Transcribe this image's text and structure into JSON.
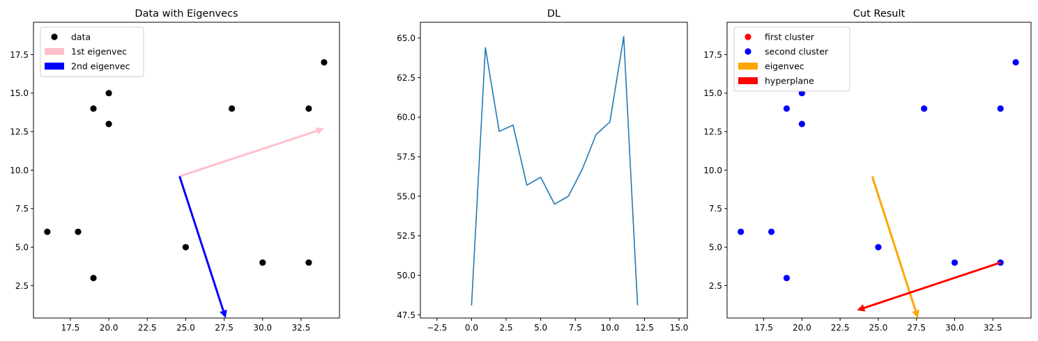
{
  "chart_data": [
    {
      "type": "scatter",
      "title": "Data with Eigenvecs",
      "xlim": [
        15.1,
        35.0
      ],
      "ylim": [
        0.4,
        19.6
      ],
      "xticks": [
        "17.5",
        "20.0",
        "22.5",
        "25.0",
        "27.5",
        "30.0",
        "32.5"
      ],
      "yticks": [
        "2.5",
        "5.0",
        "7.5",
        "10.0",
        "12.5",
        "15.0",
        "17.5"
      ],
      "series": [
        {
          "name": "data",
          "kind": "points",
          "color": "#000000",
          "points": [
            [
              16,
              6
            ],
            [
              18,
              6
            ],
            [
              19,
              3
            ],
            [
              19,
              14
            ],
            [
              20,
              15
            ],
            [
              20,
              13
            ],
            [
              25,
              5
            ],
            [
              28,
              14
            ],
            [
              30,
              4
            ],
            [
              33,
              4
            ],
            [
              33,
              14
            ],
            [
              34,
              17
            ]
          ]
        },
        {
          "name": "1st eigenvec",
          "kind": "arrow",
          "color": "#ffc0cb",
          "from": [
            24.6,
            9.6
          ],
          "to": [
            34.0,
            12.7
          ]
        },
        {
          "name": "2nd eigenvec",
          "kind": "arrow",
          "color": "#0000ff",
          "from": [
            24.6,
            9.6
          ],
          "to": [
            27.6,
            0.4
          ]
        }
      ],
      "legend": "top-left",
      "grid": false
    },
    {
      "type": "line",
      "title": "DL",
      "xlim": [
        -3.7,
        15.6
      ],
      "ylim": [
        47.3,
        66.0
      ],
      "xticks": [
        "−2.5",
        "0.0",
        "2.5",
        "5.0",
        "7.5",
        "10.0",
        "12.5",
        "15.0"
      ],
      "yticks": [
        "47.5",
        "50.0",
        "52.5",
        "55.0",
        "57.5",
        "60.0",
        "62.5",
        "65.0"
      ],
      "series": [
        {
          "kind": "line",
          "color": "#1f77b4",
          "x": [
            0,
            1,
            2,
            3,
            4,
            5,
            6,
            7,
            8,
            9,
            10,
            11,
            12
          ],
          "y": [
            48.1,
            64.4,
            59.1,
            59.5,
            55.7,
            56.2,
            54.5,
            55.0,
            56.7,
            58.9,
            59.7,
            65.1,
            48.1
          ]
        }
      ],
      "grid": false
    },
    {
      "type": "scatter",
      "title": "Cut Result",
      "xlim": [
        15.1,
        35.0
      ],
      "ylim": [
        0.4,
        19.6
      ],
      "xticks": [
        "17.5",
        "20.0",
        "22.5",
        "25.0",
        "27.5",
        "30.0",
        "32.5"
      ],
      "yticks": [
        "2.5",
        "5.0",
        "7.5",
        "10.0",
        "12.5",
        "15.0",
        "17.5"
      ],
      "series": [
        {
          "name": "first cluster",
          "kind": "points",
          "color": "#ff0000",
          "points": []
        },
        {
          "name": "second cluster",
          "kind": "points",
          "color": "#0000ff",
          "points": [
            [
              16,
              6
            ],
            [
              18,
              6
            ],
            [
              19,
              3
            ],
            [
              19,
              14
            ],
            [
              20,
              15
            ],
            [
              20,
              13
            ],
            [
              25,
              5
            ],
            [
              28,
              14
            ],
            [
              30,
              4
            ],
            [
              33,
              4
            ],
            [
              33,
              14
            ],
            [
              34,
              17
            ]
          ]
        },
        {
          "name": "eigenvec",
          "kind": "arrow",
          "color": "#ffa500",
          "from": [
            24.6,
            9.6
          ],
          "to": [
            27.6,
            0.4
          ]
        },
        {
          "name": "hyperplane",
          "kind": "arrow",
          "color": "#ff0000",
          "from": [
            33.0,
            4.0
          ],
          "to": [
            23.6,
            0.9
          ]
        }
      ],
      "legend": "top-left",
      "grid": false
    }
  ]
}
